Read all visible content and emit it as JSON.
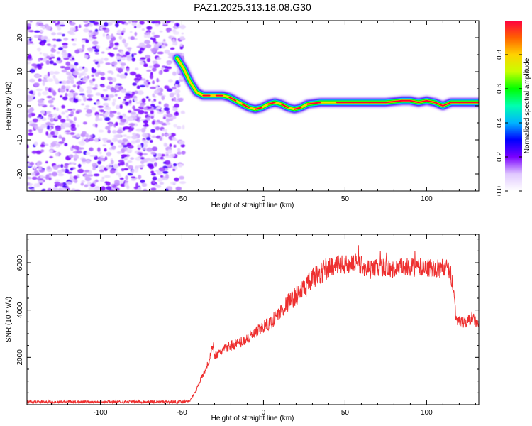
{
  "figure_title": "PAZ1.2025.313.18.08.G30",
  "colors": {
    "snr_line": "#ee2f2f",
    "scatter_purple": "#8a2be2",
    "band_core": "#ff0030",
    "background": "#ffffff"
  },
  "chart_data": [
    {
      "type": "heatmap",
      "title": "PAZ1.2025.313.18.08.G30",
      "xlabel": "Height of straight line (km)",
      "ylabel": "Frequency (Hz)",
      "xlim": [
        -145,
        132
      ],
      "ylim": [
        -25,
        25
      ],
      "x_ticks": [
        -100,
        -50,
        0,
        50,
        100
      ],
      "y_ticks": [
        -20,
        -10,
        0,
        10,
        20
      ],
      "colorbar": {
        "label": "Normalized spectral amplitude",
        "range": [
          0.0,
          1.0
        ],
        "ticks": [
          0.0,
          0.2,
          0.4,
          0.6,
          0.8
        ]
      },
      "noise_region": {
        "x_from": -145,
        "x_to": -49,
        "amplitude_range": [
          0.0,
          0.35
        ]
      },
      "ridge": {
        "x": [
          -53,
          -49,
          -45,
          -41,
          -37,
          -33,
          -29,
          -25,
          -21,
          -17,
          -13,
          -9,
          -5,
          -1,
          3,
          7,
          11,
          15,
          19,
          23,
          27,
          35,
          45,
          55,
          65,
          75,
          85,
          90,
          95,
          100,
          105,
          110,
          115,
          120,
          125,
          132
        ],
        "frequency": [
          14,
          11,
          7,
          4,
          3,
          3,
          3,
          3,
          2.5,
          1.5,
          0.5,
          -0.5,
          -1,
          -0.5,
          0.5,
          1,
          0.5,
          -0.5,
          -1,
          -0.5,
          0.5,
          1,
          1,
          1,
          1,
          1,
          1.5,
          1.5,
          1,
          1.5,
          1,
          0,
          1,
          1,
          1,
          1
        ]
      }
    },
    {
      "type": "line",
      "xlabel": "Height of straight line (km)",
      "ylabel": "SNR (10 * v/v)",
      "xlim": [
        -145,
        132
      ],
      "ylim": [
        0,
        7200
      ],
      "x_ticks": [
        -100,
        -50,
        0,
        50,
        100
      ],
      "y_ticks": [
        2000,
        4000,
        6000
      ],
      "series": [
        {
          "name": "SNR",
          "x": [
            -145,
            -120,
            -90,
            -60,
            -50,
            -45,
            -42,
            -39,
            -36,
            -33,
            -31,
            -30,
            -28,
            -25,
            -20,
            -15,
            -10,
            -5,
            0,
            5,
            10,
            15,
            20,
            25,
            30,
            35,
            40,
            45,
            50,
            55,
            60,
            65,
            70,
            75,
            80,
            85,
            90,
            95,
            100,
            105,
            110,
            114,
            116,
            118,
            120,
            125,
            128,
            130,
            132
          ],
          "values": [
            120,
            120,
            120,
            120,
            120,
            180,
            500,
            1000,
            1400,
            1900,
            2600,
            2100,
            2100,
            2300,
            2500,
            2600,
            2800,
            3000,
            3300,
            3500,
            3900,
            4300,
            4600,
            4900,
            5300,
            5600,
            5800,
            5900,
            5900,
            6000,
            5900,
            5700,
            5800,
            5800,
            5700,
            5800,
            5800,
            5800,
            5800,
            5700,
            5800,
            5700,
            5200,
            3700,
            3500,
            3500,
            3700,
            3500,
            3400
          ]
        }
      ]
    }
  ]
}
